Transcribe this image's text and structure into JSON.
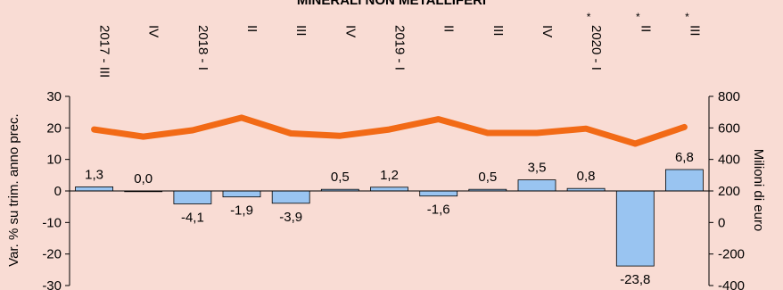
{
  "chart_data": {
    "type": "bar",
    "title": "MINERALI NON METALLIFERI",
    "categories": [
      "2017 - III",
      "IV",
      "2018 - I",
      "II",
      "III",
      "IV",
      "2019 - I",
      "II",
      "III",
      "IV",
      "2020 - I",
      "II",
      "III"
    ],
    "category_marks": [
      "",
      "",
      "",
      "",
      "",
      "",
      "",
      "",
      "",
      "",
      "*",
      "*",
      "*"
    ],
    "series": [
      {
        "type": "bar",
        "axis": "left",
        "values": [
          1.3,
          0.0,
          -4.1,
          -1.9,
          -3.9,
          0.5,
          1.2,
          -1.6,
          0.5,
          3.5,
          0.8,
          -23.8,
          6.8
        ],
        "labels": [
          "1,3",
          "0,0",
          "-4,1",
          "-1,9",
          "-3,9",
          "0,5",
          "1,2",
          "-1,6",
          "0,5",
          "3,5",
          "0,8",
          "-23,8",
          "6,8"
        ],
        "color": "#99c4f1"
      },
      {
        "type": "line",
        "axis": "right",
        "values": [
          590,
          545,
          585,
          665,
          565,
          550,
          590,
          655,
          568,
          568,
          595,
          500,
          605
        ],
        "color": "#f26a16"
      }
    ],
    "ylabel": "Var. % su trim. anno prec.",
    "y2label": "Milioni di euro",
    "ylim": [
      -30,
      30
    ],
    "y2lim": [
      -400,
      800
    ],
    "yticks": [
      "30",
      "20",
      "10",
      "0",
      "-10",
      "-20",
      "-30"
    ],
    "y2ticks": [
      "800",
      "600",
      "400",
      "200",
      "0",
      "-200",
      "-400"
    ],
    "grid": false
  }
}
